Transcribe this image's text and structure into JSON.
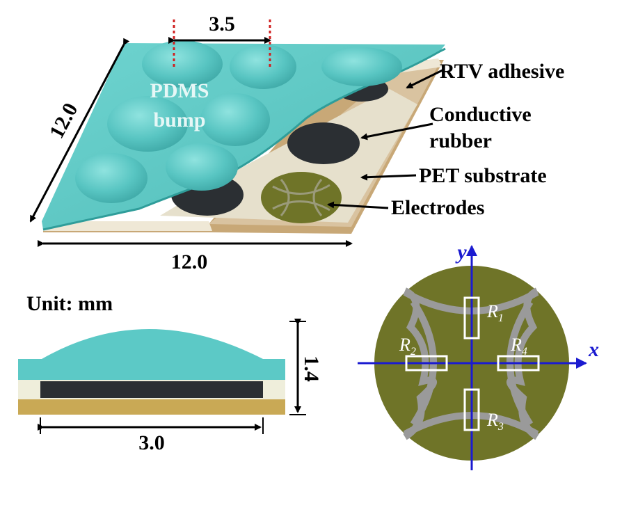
{
  "dimensions": {
    "pitch": "3.5",
    "side_length": "12.0",
    "width": "12.0",
    "bump_width": "3.0",
    "height": "1.4"
  },
  "labels": {
    "pdms_line1": "PDMS",
    "pdms_line2": "bump",
    "rtv": "RTV adhesive",
    "conductive_line1": "Conductive",
    "conductive_line2": "rubber",
    "pet": "PET substrate",
    "electrodes": "Electrodes",
    "unit": "Unit: mm"
  },
  "electrode_diagram": {
    "axis_x": "x",
    "axis_y": "y",
    "resistors": [
      {
        "letter": "R",
        "sub": "1"
      },
      {
        "letter": "R",
        "sub": "2"
      },
      {
        "letter": "R",
        "sub": "3"
      },
      {
        "letter": "R",
        "sub": "4"
      }
    ]
  },
  "colors": {
    "pdms": "#5cc9c6",
    "rubber": "#2b2f33",
    "pet": "#c9a978",
    "electrode": "#6f7428",
    "axis": "#1b1bd0"
  }
}
